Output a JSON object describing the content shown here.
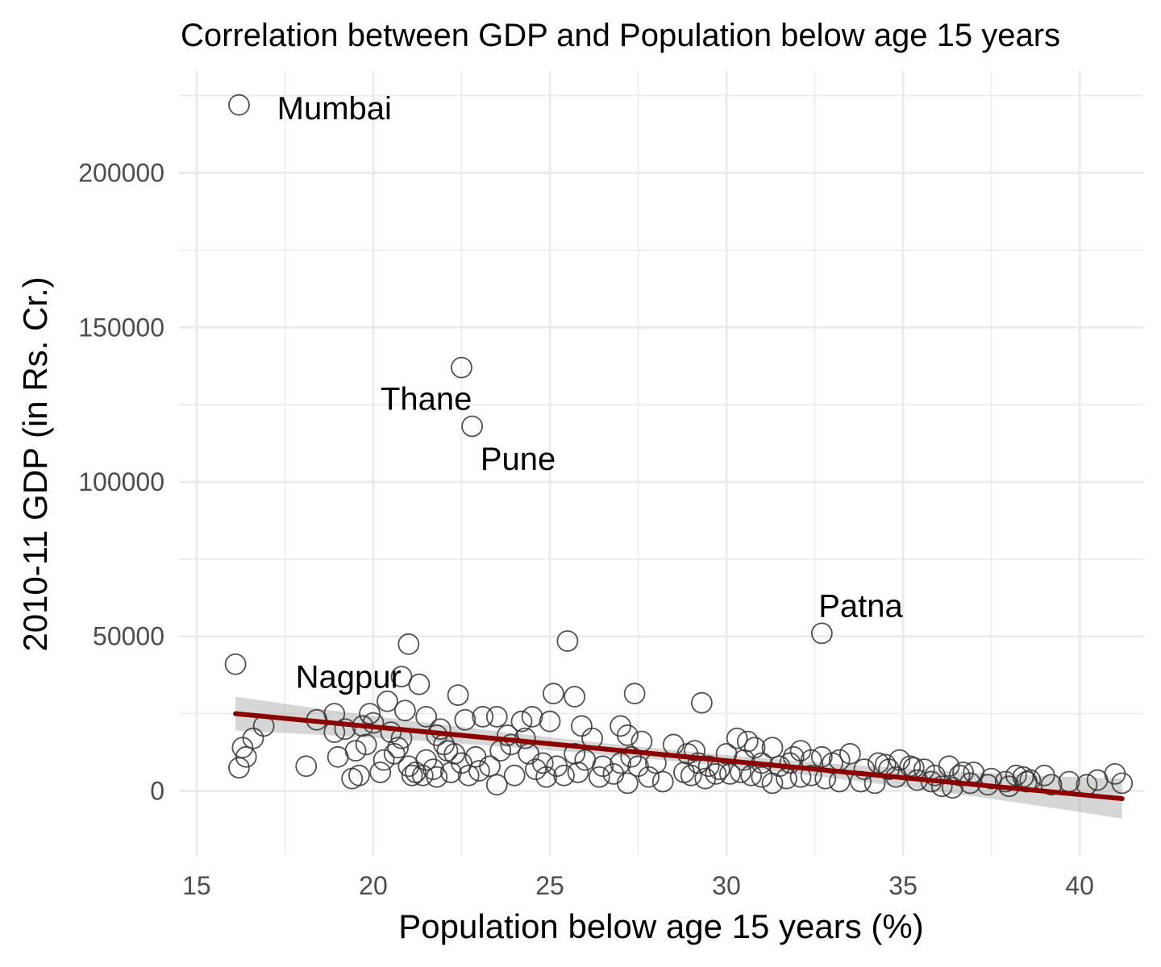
{
  "chart_data": {
    "type": "scatter",
    "title": "Correlation between GDP and Population below age 15 years",
    "xlabel": "Population below age 15 years (%)",
    "ylabel": "2010-11 GDP (in Rs. Cr.)",
    "xlim": [
      14.5,
      41.8
    ],
    "ylim": [
      -21000,
      233000
    ],
    "x_ticks": [
      15,
      20,
      25,
      30,
      35,
      40
    ],
    "y_ticks": [
      0,
      50000,
      100000,
      150000,
      200000
    ],
    "x_tick_labels": [
      "15",
      "20",
      "25",
      "30",
      "35",
      "40"
    ],
    "y_tick_labels": [
      "0",
      "50000",
      "100000",
      "150000",
      "200000"
    ],
    "grid": true,
    "annotations": [
      {
        "label": "Mumbai",
        "x": 18.9,
        "y": 221000
      },
      {
        "label": "Thane",
        "x": 21.5,
        "y": 127000
      },
      {
        "label": "Pune",
        "x": 24.1,
        "y": 107500
      },
      {
        "label": "Patna",
        "x": 33.8,
        "y": 60000
      },
      {
        "label": "Nagpur",
        "x": 19.3,
        "y": 37000
      }
    ],
    "trend": {
      "x": [
        16.1,
        41.2
      ],
      "y": [
        25000,
        -2500
      ],
      "band_half_width": [
        5500,
        6500
      ],
      "band_half_width_mid": 1800,
      "color": "#8b0000"
    },
    "series": [
      {
        "points": [
          [
            16.2,
            222000
          ],
          [
            22.5,
            137000
          ],
          [
            22.8,
            118000
          ],
          [
            32.7,
            51000
          ],
          [
            16.1,
            41000
          ],
          [
            21.0,
            47500
          ],
          [
            25.5,
            48500
          ],
          [
            20.8,
            37000
          ],
          [
            21.3,
            34500
          ],
          [
            20.4,
            29000
          ],
          [
            22.4,
            31000
          ],
          [
            25.1,
            31500
          ],
          [
            25.7,
            30500
          ],
          [
            27.4,
            31500
          ],
          [
            29.3,
            28500
          ],
          [
            22.6,
            23000
          ],
          [
            23.1,
            24000
          ],
          [
            23.5,
            24000
          ],
          [
            24.2,
            22500
          ],
          [
            24.5,
            24000
          ],
          [
            25.0,
            22500
          ],
          [
            25.9,
            21000
          ],
          [
            27.0,
            21000
          ],
          [
            27.2,
            18000
          ],
          [
            18.9,
            25000
          ],
          [
            19.2,
            20000
          ],
          [
            19.7,
            21000
          ],
          [
            20.0,
            22000
          ],
          [
            20.5,
            19000
          ],
          [
            20.8,
            17000
          ],
          [
            21.5,
            24000
          ],
          [
            21.8,
            18000
          ],
          [
            22.0,
            15000
          ],
          [
            22.3,
            12000
          ],
          [
            18.9,
            19000
          ],
          [
            19.0,
            11000
          ],
          [
            19.5,
            13000
          ],
          [
            19.8,
            15000
          ],
          [
            20.3,
            10000
          ],
          [
            20.6,
            12000
          ],
          [
            21.0,
            8000
          ],
          [
            21.2,
            6000
          ],
          [
            21.5,
            10000
          ],
          [
            21.7,
            7000
          ],
          [
            22.1,
            13000
          ],
          [
            22.5,
            9000
          ],
          [
            22.9,
            11000
          ],
          [
            23.3,
            8000
          ],
          [
            23.6,
            13000
          ],
          [
            23.9,
            15000
          ],
          [
            24.4,
            12000
          ],
          [
            24.8,
            9000
          ],
          [
            25.2,
            8000
          ],
          [
            25.7,
            12000
          ],
          [
            26.0,
            10000
          ],
          [
            26.5,
            8000
          ],
          [
            27.0,
            9000
          ],
          [
            27.3,
            11000
          ],
          [
            27.5,
            8000
          ],
          [
            28.0,
            9000
          ],
          [
            28.5,
            15000
          ],
          [
            28.9,
            12000
          ],
          [
            29.2,
            9000
          ],
          [
            29.5,
            8000
          ],
          [
            29.8,
            7000
          ],
          [
            30.3,
            17000
          ],
          [
            30.6,
            16000
          ],
          [
            30.8,
            14000
          ],
          [
            30.5,
            10000
          ],
          [
            31.0,
            9000
          ],
          [
            31.3,
            14000
          ],
          [
            31.5,
            8000
          ],
          [
            31.8,
            9000
          ],
          [
            32.1,
            13000
          ],
          [
            32.4,
            10000
          ],
          [
            32.7,
            11000
          ],
          [
            33.0,
            9000
          ],
          [
            33.5,
            12000
          ],
          [
            33.9,
            7000
          ],
          [
            34.3,
            9000
          ],
          [
            34.6,
            7000
          ],
          [
            34.9,
            10000
          ],
          [
            35.2,
            8000
          ],
          [
            35.6,
            7000
          ],
          [
            35.9,
            5000
          ],
          [
            36.3,
            8000
          ],
          [
            36.6,
            5000
          ],
          [
            37.0,
            6000
          ],
          [
            37.5,
            4000
          ],
          [
            37.9,
            3000
          ],
          [
            38.2,
            5000
          ],
          [
            38.6,
            3500
          ],
          [
            39.0,
            5000
          ],
          [
            39.7,
            3000
          ],
          [
            40.5,
            3500
          ],
          [
            41.0,
            5500
          ],
          [
            41.2,
            2500
          ],
          [
            16.2,
            7500
          ],
          [
            16.3,
            14000
          ],
          [
            16.4,
            11000
          ],
          [
            16.6,
            17000
          ],
          [
            18.1,
            8000
          ],
          [
            19.4,
            4000
          ],
          [
            19.6,
            5000
          ],
          [
            20.2,
            6000
          ],
          [
            20.7,
            14000
          ],
          [
            21.1,
            5000
          ],
          [
            21.4,
            5000
          ],
          [
            21.8,
            4500
          ],
          [
            22.2,
            6000
          ],
          [
            22.7,
            5000
          ],
          [
            23.0,
            6500
          ],
          [
            23.5,
            2000
          ],
          [
            24.0,
            5000
          ],
          [
            24.6,
            7000
          ],
          [
            24.9,
            4500
          ],
          [
            25.4,
            5000
          ],
          [
            25.8,
            6000
          ],
          [
            26.4,
            4500
          ],
          [
            26.8,
            5500
          ],
          [
            27.2,
            2500
          ],
          [
            27.8,
            4500
          ],
          [
            28.2,
            3000
          ],
          [
            28.8,
            6000
          ],
          [
            29.0,
            5000
          ],
          [
            29.4,
            4000
          ],
          [
            29.7,
            5500
          ],
          [
            30.1,
            5500
          ],
          [
            30.4,
            6000
          ],
          [
            30.7,
            5000
          ],
          [
            31.0,
            4500
          ],
          [
            31.3,
            2500
          ],
          [
            31.7,
            4000
          ],
          [
            32.1,
            4500
          ],
          [
            32.4,
            5000
          ],
          [
            32.8,
            4000
          ],
          [
            33.2,
            3000
          ],
          [
            33.8,
            3000
          ],
          [
            34.2,
            2500
          ],
          [
            34.8,
            4500
          ],
          [
            35.4,
            3500
          ],
          [
            35.8,
            3000
          ],
          [
            36.1,
            1500
          ],
          [
            36.4,
            1000
          ],
          [
            36.9,
            2500
          ],
          [
            37.4,
            2000
          ],
          [
            38.0,
            1500
          ],
          [
            38.5,
            3000
          ],
          [
            39.2,
            2000
          ],
          [
            40.2,
            2000
          ],
          [
            16.9,
            21000
          ],
          [
            18.4,
            23000
          ],
          [
            19.9,
            25000
          ],
          [
            20.9,
            26000
          ],
          [
            21.9,
            20000
          ],
          [
            23.8,
            18000
          ],
          [
            24.3,
            17000
          ],
          [
            26.2,
            17000
          ],
          [
            27.6,
            16000
          ],
          [
            29.1,
            13000
          ],
          [
            30.0,
            12000
          ],
          [
            31.9,
            11000
          ],
          [
            33.2,
            10000
          ],
          [
            34.5,
            8500
          ],
          [
            35.3,
            7500
          ],
          [
            36.7,
            6000
          ],
          [
            38.4,
            4500
          ]
        ]
      }
    ]
  }
}
